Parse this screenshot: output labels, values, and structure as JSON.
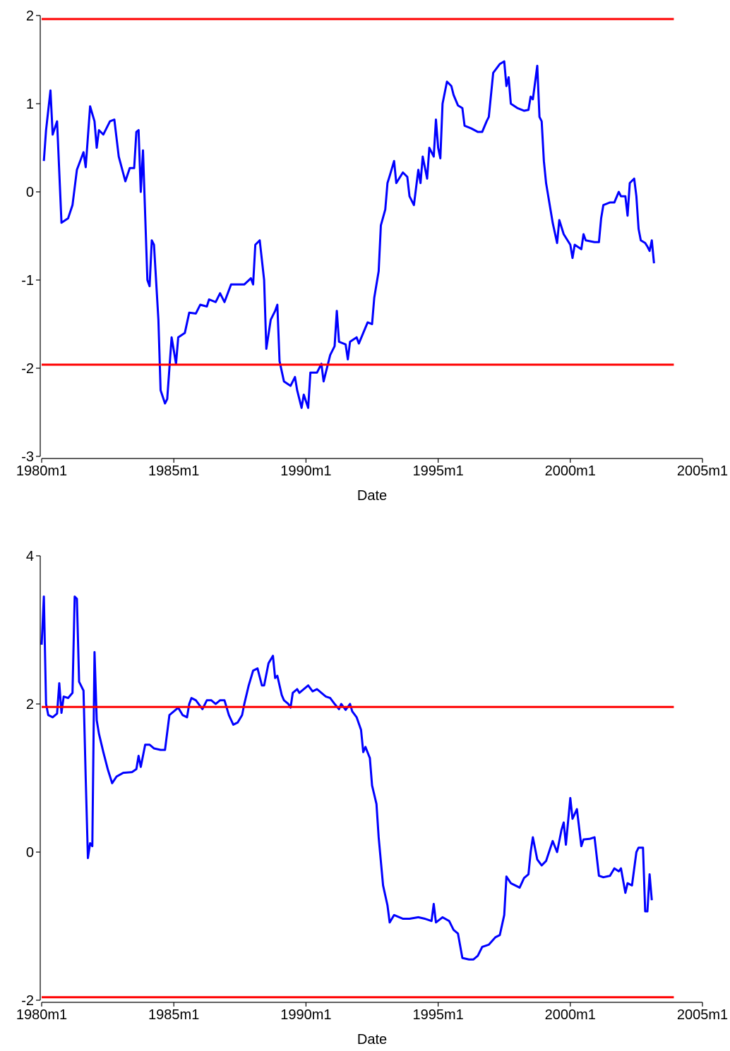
{
  "chart_data": [
    {
      "type": "line",
      "x_label": "Date",
      "xlim": [
        "1980m1",
        "2005m1"
      ],
      "xticks": [
        "1980m1",
        "1985m1",
        "1990m1",
        "1995m1",
        "2000m1",
        "2005m1"
      ],
      "ylim": [
        -3,
        2
      ],
      "yticks": [
        -3,
        -2,
        -1,
        0,
        1,
        2
      ],
      "grid": false,
      "series": [
        {
          "color": "#0000ff",
          "x": [
            "1980m2",
            "1980m3",
            "1980m5",
            "1980m6",
            "1980m8",
            "1980m10",
            "1981m1",
            "1981m3",
            "1981m5",
            "1981m8",
            "1981m9",
            "1981m11",
            "1982m1",
            "1982m2",
            "1982m3",
            "1982m5",
            "1982m8",
            "1982m10",
            "1982m12",
            "1983m3",
            "1983m5",
            "1983m7",
            "1983m8",
            "1983m9",
            "1983m10",
            "1983m11",
            "1984m1",
            "1984m2",
            "1984m3",
            "1984m4",
            "1984m6",
            "1984m7",
            "1984m9",
            "1984m10",
            "1984m12",
            "1985m2",
            "1985m3",
            "1985m6",
            "1985m8",
            "1985m11",
            "1986m1",
            "1986m4",
            "1986m5",
            "1986m8",
            "1986m10",
            "1986m12",
            "1987m3",
            "1987m9",
            "1987m12",
            "1988m1",
            "1988m2",
            "1988m4",
            "1988m6",
            "1988m7",
            "1988m9",
            "1988m11",
            "1988m12",
            "1989m1",
            "1989m3",
            "1989m6",
            "1989m8",
            "1989m9",
            "1989m11",
            "1989m12",
            "1990m2",
            "1990m3",
            "1990m6",
            "1990m8",
            "1990m9",
            "1990m12",
            "1991m2",
            "1991m3",
            "1991m4",
            "1991m7",
            "1991m8",
            "1991m9",
            "1991m12",
            "1992m1",
            "1992m3",
            "1992m5",
            "1992m7",
            "1992m8",
            "1992m10",
            "1992m11",
            "1993m1",
            "1993m2",
            "1993m3",
            "1993m5",
            "1993m6",
            "1993m9",
            "1993m11",
            "1993m12",
            "1994m2",
            "1994m4",
            "1994m5",
            "1994m6",
            "1994m8",
            "1994m9",
            "1994m11",
            "1994m12",
            "1995m1",
            "1995m2",
            "1995m3",
            "1995m5",
            "1995m7",
            "1995m8",
            "1995m10",
            "1995m12",
            "1996m1",
            "1996m4",
            "1996m7",
            "1996m9",
            "1996m11",
            "1996m12",
            "1997m1",
            "1997m2",
            "1997m5",
            "1997m7",
            "1997m8",
            "1997m9",
            "1997m10",
            "1998m1",
            "1998m4",
            "1998m6",
            "1998m7",
            "1998m8",
            "1998m10",
            "1998m11",
            "1998m12",
            "1999m1",
            "1999m2",
            "1999m4",
            "1999m5",
            "1999m7",
            "1999m8",
            "1999m10",
            "2000m1",
            "2000m2",
            "2000m3",
            "2000m6",
            "2000m7",
            "2000m8",
            "2000m12",
            "2001m2",
            "2001m3",
            "2001m4",
            "2001m7",
            "2001m9",
            "2001m11",
            "2001m12",
            "2002m2",
            "2002m3",
            "2002m4",
            "2002m6",
            "2002m7",
            "2002m8",
            "2002m9",
            "2002m11",
            "2002m12",
            "2003m1",
            "2003m2",
            "2003m3"
          ],
          "values": [
            0.35,
            0.7,
            1.15,
            0.65,
            0.8,
            -0.35,
            -0.3,
            -0.15,
            0.25,
            0.45,
            0.28,
            0.97,
            0.8,
            0.5,
            0.7,
            0.65,
            0.8,
            0.82,
            0.4,
            0.12,
            0.27,
            0.27,
            0.68,
            0.7,
            0.0,
            0.47,
            -1.0,
            -1.07,
            -0.55,
            -0.6,
            -1.45,
            -2.25,
            -2.4,
            -2.35,
            -1.65,
            -1.95,
            -1.65,
            -1.6,
            -1.37,
            -1.38,
            -1.28,
            -1.3,
            -1.22,
            -1.25,
            -1.15,
            -1.25,
            -1.05,
            -1.05,
            -0.98,
            -1.05,
            -0.6,
            -0.55,
            -1.0,
            -1.78,
            -1.45,
            -1.35,
            -1.28,
            -1.92,
            -2.15,
            -2.2,
            -2.1,
            -2.25,
            -2.45,
            -2.3,
            -2.45,
            -2.05,
            -2.05,
            -1.95,
            -2.15,
            -1.85,
            -1.75,
            -1.35,
            -1.7,
            -1.73,
            -1.9,
            -1.7,
            -1.65,
            -1.72,
            -1.6,
            -1.48,
            -1.5,
            -1.2,
            -0.9,
            -0.38,
            -0.2,
            0.1,
            0.18,
            0.35,
            0.1,
            0.22,
            0.17,
            -0.05,
            -0.15,
            0.25,
            0.1,
            0.4,
            0.15,
            0.5,
            0.4,
            0.82,
            0.5,
            0.38,
            1.0,
            1.25,
            1.2,
            1.1,
            0.98,
            0.95,
            0.75,
            0.72,
            0.68,
            0.68,
            0.8,
            0.85,
            1.1,
            1.35,
            1.45,
            1.48,
            1.2,
            1.3,
            1.0,
            0.95,
            0.92,
            0.93,
            1.08,
            1.05,
            1.43,
            0.85,
            0.8,
            0.35,
            0.1,
            -0.2,
            -0.35,
            -0.58,
            -0.32,
            -0.48,
            -0.6,
            -0.75,
            -0.6,
            -0.65,
            -0.48,
            -0.55,
            -0.57,
            -0.57,
            -0.3,
            -0.15,
            -0.12,
            -0.12,
            0.0,
            -0.05,
            -0.05,
            -0.27,
            0.1,
            0.15,
            -0.05,
            -0.42,
            -0.55,
            -0.58,
            -0.62,
            -0.67,
            -0.55,
            -0.81
          ]
        },
        {
          "color": "#ff0000",
          "x": [
            "1980m1",
            "2003m12"
          ],
          "values": [
            1.96,
            1.96
          ]
        },
        {
          "color": "#ff0000",
          "x": [
            "1980m1",
            "2003m12"
          ],
          "values": [
            -1.96,
            -1.96
          ]
        }
      ]
    },
    {
      "type": "line",
      "x_label": "Date",
      "xlim": [
        "1980m1",
        "2005m1"
      ],
      "xticks": [
        "1980m1",
        "1985m1",
        "1990m1",
        "1995m1",
        "2000m1",
        "2005m1"
      ],
      "ylim": [
        -2,
        4
      ],
      "yticks": [
        -2,
        0,
        2,
        4
      ],
      "grid": false,
      "series": [
        {
          "color": "#0000ff",
          "x": [
            "1980m1",
            "1980m2",
            "1980m3",
            "1980m4",
            "1980m6",
            "1980m8",
            "1980m9",
            "1980m10",
            "1980m11",
            "1981m1",
            "1981m3",
            "1981m4",
            "1981m5",
            "1981m6",
            "1981m8",
            "1981m9",
            "1981m10",
            "1981m11",
            "1981m12",
            "1982m1",
            "1982m2",
            "1982m3",
            "1982m5",
            "1982m7",
            "1982m9",
            "1982m11",
            "1983m2",
            "1983m6",
            "1983m8",
            "1983m9",
            "1983m10",
            "1983m12",
            "1984m2",
            "1984m4",
            "1984m7",
            "1984m9",
            "1984m11",
            "1985m1",
            "1985m3",
            "1985m5",
            "1985m7",
            "1985m8",
            "1985m9",
            "1985m11",
            "1986m2",
            "1986m4",
            "1986m6",
            "1986m8",
            "1986m10",
            "1986m12",
            "1987m2",
            "1987m4",
            "1987m6",
            "1987m8",
            "1987m9",
            "1987m11",
            "1988m1",
            "1988m3",
            "1988m5",
            "1988m6",
            "1988m8",
            "1988m10",
            "1988m11",
            "1988m12",
            "1989m2",
            "1989m3",
            "1989m5",
            "1989m6",
            "1989m7",
            "1989m9",
            "1989m10",
            "1989m12",
            "1990m2",
            "1990m4",
            "1990m6",
            "1990m8",
            "1990m10",
            "1990m12",
            "1991m2",
            "1991m4",
            "1991m5",
            "1991m7",
            "1991m9",
            "1991m10",
            "1991m12",
            "1992m2",
            "1992m3",
            "1992m4",
            "1992m6",
            "1992m7",
            "1992m9",
            "1992m10",
            "1992m12",
            "1993m2",
            "1993m3",
            "1993m5",
            "1993m9",
            "1993m12",
            "1994m4",
            "1994m7",
            "1994m10",
            "1994m11",
            "1994m12",
            "1995m3",
            "1995m6",
            "1995m8",
            "1995m10",
            "1995m12",
            "1996m3",
            "1996m5",
            "1996m7",
            "1996m9",
            "1996m12",
            "1997m3",
            "1997m5",
            "1997m7",
            "1997m8",
            "1997m10",
            "1997m12",
            "1998m2",
            "1998m4",
            "1998m6",
            "1998m7",
            "1998m8",
            "1998m10",
            "1998m12",
            "1999m2",
            "1999m5",
            "1999m7",
            "1999m9",
            "1999m10",
            "1999m11",
            "2000m1",
            "2000m2",
            "2000m4",
            "2000m6",
            "2000m7",
            "2000m10",
            "2000m12",
            "2001m2",
            "2001m4",
            "2001m7",
            "2001m9",
            "2001m11",
            "2001m12",
            "2002m2",
            "2002m3",
            "2002m5",
            "2002m7",
            "2002m8",
            "2002m10",
            "2002m11",
            "2002m12",
            "2003m1",
            "2003m2"
          ],
          "values": [
            2.8,
            3.45,
            2.0,
            1.85,
            1.82,
            1.87,
            2.28,
            1.88,
            2.1,
            2.08,
            2.15,
            3.45,
            3.42,
            2.3,
            2.18,
            1.0,
            -0.08,
            0.12,
            0.08,
            2.7,
            1.78,
            1.6,
            1.35,
            1.12,
            0.93,
            1.02,
            1.07,
            1.08,
            1.12,
            1.3,
            1.15,
            1.45,
            1.45,
            1.4,
            1.38,
            1.38,
            1.85,
            1.9,
            1.95,
            1.85,
            1.82,
            2.0,
            2.08,
            2.05,
            1.93,
            2.05,
            2.05,
            2.0,
            2.05,
            2.05,
            1.85,
            1.72,
            1.75,
            1.85,
            2.0,
            2.25,
            2.45,
            2.48,
            2.25,
            2.25,
            2.55,
            2.65,
            2.35,
            2.38,
            2.12,
            2.05,
            2.0,
            1.95,
            2.15,
            2.2,
            2.15,
            2.2,
            2.25,
            2.17,
            2.2,
            2.15,
            2.1,
            2.08,
            2.0,
            1.93,
            2.0,
            1.92,
            2.0,
            1.9,
            1.82,
            1.65,
            1.35,
            1.42,
            1.27,
            0.9,
            0.65,
            0.2,
            -0.45,
            -0.72,
            -0.95,
            -0.85,
            -0.9,
            -0.9,
            -0.88,
            -0.9,
            -0.93,
            -0.7,
            -0.95,
            -0.88,
            -0.93,
            -1.05,
            -1.1,
            -1.43,
            -1.45,
            -1.45,
            -1.4,
            -1.28,
            -1.25,
            -1.15,
            -1.12,
            -0.85,
            -0.33,
            -0.42,
            -0.45,
            -0.48,
            -0.35,
            -0.3,
            0.0,
            0.2,
            -0.1,
            -0.18,
            -0.12,
            0.15,
            0.0,
            0.3,
            0.4,
            0.1,
            0.73,
            0.45,
            0.58,
            0.08,
            0.17,
            0.18,
            0.2,
            -0.32,
            -0.34,
            -0.32,
            -0.22,
            -0.26,
            -0.22,
            -0.55,
            -0.42,
            -0.45,
            0.0,
            0.06,
            0.06,
            -0.8,
            -0.8,
            -0.3,
            -0.65
          ]
        },
        {
          "color": "#ff0000",
          "x": [
            "1980m1",
            "2003m12"
          ],
          "values": [
            1.96,
            1.96
          ]
        },
        {
          "color": "#ff0000",
          "x": [
            "1980m1",
            "2003m12"
          ],
          "values": [
            -1.96,
            -1.96
          ]
        }
      ]
    }
  ]
}
